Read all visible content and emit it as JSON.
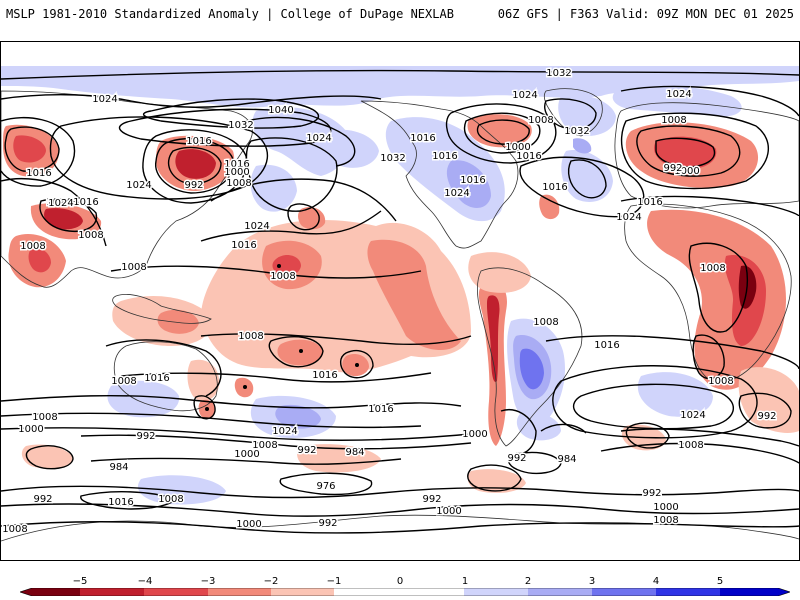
{
  "header": {
    "title": "MSLP 1981-2010 Standardized Anomaly | College of DuPage NEXLAB",
    "valid": "06Z GFS | F363 Valid: 09Z MON DEC 01 2025"
  },
  "colors": {
    "neg5": "#7a0010",
    "neg4": "#c0202e",
    "neg3": "#e0474c",
    "neg2": "#f28a7a",
    "neg1": "#fbc4b4",
    "zero": "#ffffff",
    "pos1": "#d0d4fb",
    "pos2": "#a9acf4",
    "pos3": "#6f73ef",
    "pos4": "#2f34e6",
    "pos5": "#0000c8"
  },
  "colorbar": {
    "ticks": [
      "−5",
      "−4",
      "−3",
      "−2",
      "−1",
      "0",
      "1",
      "2",
      "3",
      "4",
      "5"
    ]
  },
  "isobars": {
    "l1032a": "1032",
    "l1024a": "1024",
    "l1040": "1040",
    "l1032b": "1032",
    "l1016a": "1016",
    "l1024b": "1024",
    "l1016b": "1016",
    "l1024c": "1024",
    "l1016c": "1016",
    "l1032c": "1032",
    "l1024d": "1024",
    "l1008a": "1008",
    "l1000a": "1000",
    "l1016d": "1016",
    "l1032d": "1032",
    "l1016e": "1016",
    "l1024e": "1024",
    "l1016f": "1016",
    "l1024f": "1024",
    "l1008b": "1008",
    "l992a": "992",
    "l1000b": "1000",
    "l1016g": "1016",
    "l1024g": "1024",
    "l1016h": "1016",
    "l1024h": "1024",
    "l1000c": "1000",
    "l992b": "992",
    "l1008c": "1008",
    "l1016i": "1016",
    "l1024i": "1024",
    "l1016j": "1016",
    "l1008d": "1008",
    "l1008e": "1008",
    "l1024j": "1024",
    "l1016k": "1016",
    "l1008f": "1008",
    "l1008g": "1008",
    "l1008h": "1008",
    "l1008i": "1008",
    "l1016l": "1016",
    "l1008j": "1008",
    "l1016m": "1016",
    "l1016n": "1016",
    "l1008k": "1008",
    "l1024k": "1024",
    "l1016o": "1016",
    "l1008l": "1008",
    "l992c": "992",
    "l1000d": "1000",
    "l992d": "992",
    "l1008m": "1008",
    "l1024l": "1024",
    "l1008n": "1008",
    "l1000e": "1000",
    "l1000f": "1000",
    "l984a": "984",
    "l992e": "992",
    "l984b": "984",
    "l976": "976",
    "l992f": "992",
    "l984c": "984",
    "l992g": "992",
    "l992h": "992",
    "l1016p": "1016",
    "l1008o": "1008",
    "l1000g": "1000",
    "l992i": "992",
    "l1000h": "1000",
    "l992j": "992",
    "l1000i": "1000",
    "l1008p": "1008",
    "l1008q": "1008",
    "l1008r": "1008"
  }
}
